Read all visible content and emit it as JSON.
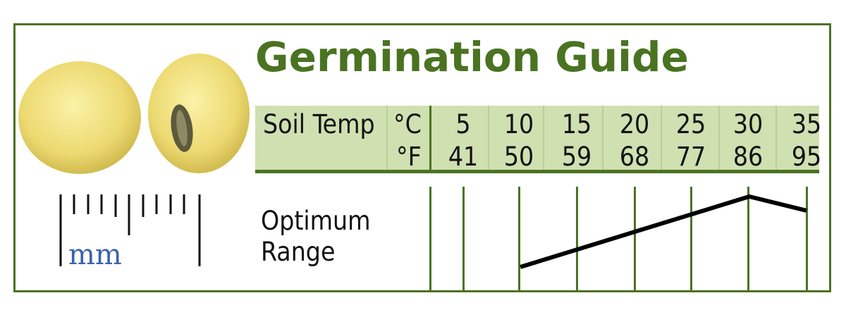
{
  "title": "Germination Guide",
  "header": {
    "soil_temp_label": "Soil Temp",
    "celsius_unit": "°C",
    "fahrenheit_unit": "°F",
    "celsius_values": [
      "5",
      "10",
      "15",
      "20",
      "25",
      "30",
      "35"
    ],
    "fahrenheit_values": [
      "41",
      "50",
      "59",
      "68",
      "77",
      "86",
      "95"
    ]
  },
  "range_label": [
    "Optimum",
    "Range"
  ],
  "scale_unit": "mm",
  "chart_data": {
    "type": "line",
    "x": [
      10,
      30,
      35
    ],
    "y": [
      0.0,
      1.0,
      0.8
    ],
    "x_unit": "°C",
    "xlim": [
      5,
      35
    ],
    "title": "",
    "xlabel": "",
    "ylabel": ""
  },
  "colors": {
    "brand_green": "#4a7321",
    "band_green": "#cfe0b1",
    "mm_blue": "#3a62ae",
    "seed_yellow": "#efe07a"
  },
  "icons": [
    "soybean-seed-icon",
    "soybean-seed-hilum-icon",
    "mm-ruler-icon"
  ]
}
